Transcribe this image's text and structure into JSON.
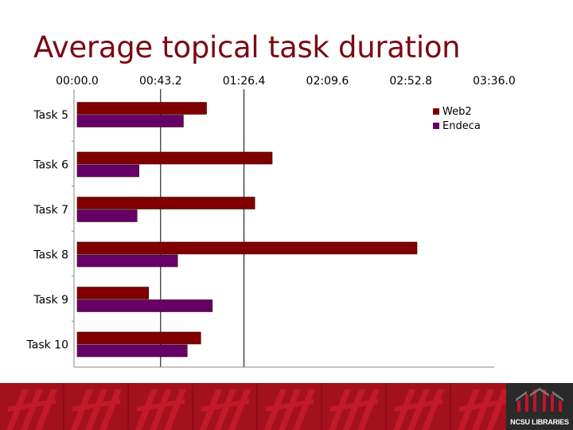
{
  "slide": {
    "title": "Average topical task duration"
  },
  "footer": {
    "logo_text": "NCSU LIBRARIES"
  },
  "chart_data": {
    "type": "bar",
    "orientation": "horizontal",
    "title": "Average topical task duration",
    "xlabel": "",
    "ylabel": "",
    "x_unit": "mm:ss.s",
    "xlim": [
      0,
      216
    ],
    "x_ticks": [
      0,
      43.2,
      86.4,
      129.6,
      172.8,
      216
    ],
    "x_tick_labels": [
      "00:00.0",
      "00:43.2",
      "01:26.4",
      "02:09.6",
      "02:52.8",
      "03:36.0"
    ],
    "x_axis_position": "top",
    "vertical_gridlines_at": [
      43.2,
      86.4
    ],
    "categories": [
      "Task 5",
      "Task 6",
      "Task 7",
      "Task 8",
      "Task 9",
      "Task 10"
    ],
    "series": [
      {
        "name": "Web2",
        "color": "#800000",
        "values": [
          67,
          101,
          92,
          176,
          37,
          64
        ]
      },
      {
        "name": "Endeca",
        "color": "#660066",
        "values": [
          55,
          32,
          31,
          52,
          70,
          57
        ]
      }
    ],
    "legend_position": "top-right"
  }
}
